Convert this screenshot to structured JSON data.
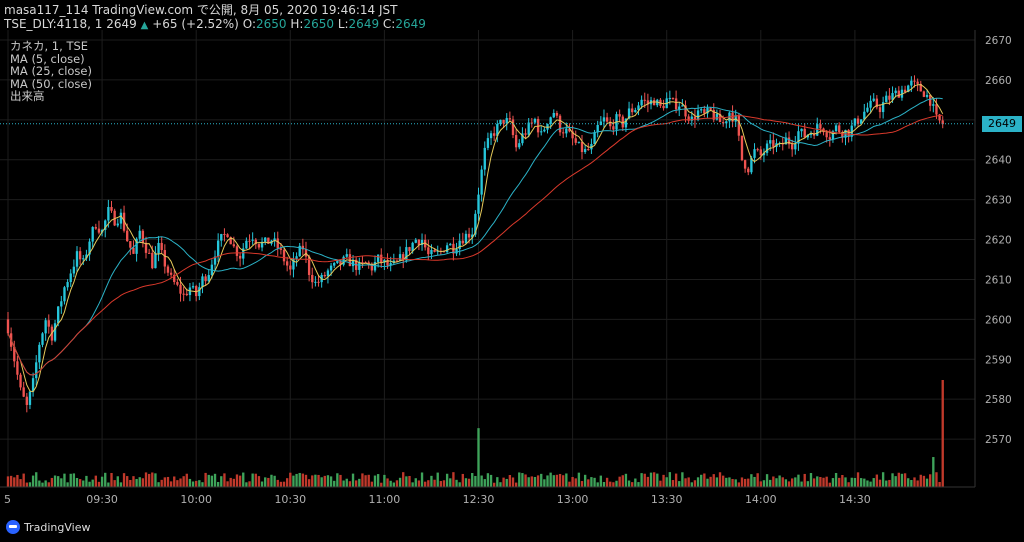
{
  "header": {
    "line1": "masa117_114 TradingView.com で公開, 8月 05, 2020 19:46:14 JST",
    "symbol": "TSE_DLY:4118, 1",
    "close_display": "2649",
    "change_arrow": "▲",
    "change": "+65 (+2.52%)",
    "o_label": "O:",
    "o_value": "2650",
    "h_label": "H:",
    "h_value": "2650",
    "l_label": "L:",
    "l_value": "2649",
    "c_label": "C:",
    "c_value": "2649"
  },
  "legend": {
    "symbol": "カネカ, 1, TSE",
    "ma5": "MA (5, close)",
    "ma25": "MA (25, close)",
    "ma50": "MA (50, close)",
    "volume": "出来高"
  },
  "last_price_label": "2649",
  "footer": {
    "brand": "TradingView"
  },
  "colors": {
    "up": "#26c6da",
    "down": "#ef5350",
    "ma5": "#e5c95a",
    "ma25": "#2bb2c7",
    "ma50": "#d9392b",
    "vol_up": "#3ea35a",
    "vol_down": "#c0392b",
    "grid": "#1d1d1d"
  },
  "chart_data": {
    "type": "candlestick",
    "title": "",
    "ylim": [
      2560,
      2670
    ],
    "y_ticks": [
      "2570",
      "2580",
      "2590",
      "2600",
      "2610",
      "2620",
      "2630",
      "2640",
      "2650",
      "2660",
      "2670"
    ],
    "x_ticks": [
      {
        "label": "5",
        "t": 0
      },
      {
        "label": "09:30",
        "t": 30
      },
      {
        "label": "10:00",
        "t": 60
      },
      {
        "label": "10:30",
        "t": 90
      },
      {
        "label": "11:00",
        "t": 120
      },
      {
        "label": "12:30",
        "t": 150
      },
      {
        "label": "13:00",
        "t": 180
      },
      {
        "label": "13:30",
        "t": 210
      },
      {
        "label": "14:00",
        "t": 240
      },
      {
        "label": "14:30",
        "t": 270
      }
    ],
    "time_range": [
      0,
      300
    ],
    "price_path": [
      [
        0,
        2598
      ],
      [
        2,
        2590
      ],
      [
        4,
        2582
      ],
      [
        6,
        2578
      ],
      [
        8,
        2584
      ],
      [
        10,
        2594
      ],
      [
        12,
        2600
      ],
      [
        14,
        2596
      ],
      [
        16,
        2602
      ],
      [
        18,
        2608
      ],
      [
        20,
        2612
      ],
      [
        22,
        2616
      ],
      [
        24,
        2614
      ],
      [
        26,
        2620
      ],
      [
        28,
        2624
      ],
      [
        30,
        2622
      ],
      [
        32,
        2627
      ],
      [
        34,
        2625
      ],
      [
        36,
        2626
      ],
      [
        38,
        2620
      ],
      [
        40,
        2616
      ],
      [
        42,
        2622
      ],
      [
        44,
        2618
      ],
      [
        46,
        2614
      ],
      [
        48,
        2618
      ],
      [
        50,
        2614
      ],
      [
        52,
        2610
      ],
      [
        54,
        2608
      ],
      [
        56,
        2606
      ],
      [
        58,
        2608
      ],
      [
        60,
        2606
      ],
      [
        62,
        2610
      ],
      [
        64,
        2612
      ],
      [
        66,
        2617
      ],
      [
        68,
        2620
      ],
      [
        70,
        2622
      ],
      [
        72,
        2618
      ],
      [
        74,
        2616
      ],
      [
        76,
        2620
      ],
      [
        78,
        2621
      ],
      [
        80,
        2619
      ],
      [
        82,
        2619
      ],
      [
        84,
        2620
      ],
      [
        86,
        2618
      ],
      [
        88,
        2615
      ],
      [
        90,
        2612
      ],
      [
        92,
        2616
      ],
      [
        94,
        2618
      ],
      [
        96,
        2612
      ],
      [
        98,
        2609
      ],
      [
        100,
        2610
      ],
      [
        102,
        2612
      ],
      [
        104,
        2613
      ],
      [
        106,
        2614
      ],
      [
        108,
        2615
      ],
      [
        110,
        2614
      ],
      [
        112,
        2613
      ],
      [
        114,
        2614
      ],
      [
        116,
        2613
      ],
      [
        118,
        2615
      ],
      [
        120,
        2614
      ],
      [
        122,
        2613
      ],
      [
        124,
        2614
      ],
      [
        126,
        2616
      ],
      [
        128,
        2618
      ],
      [
        130,
        2620
      ],
      [
        132,
        2620
      ],
      [
        134,
        2616
      ],
      [
        136,
        2616
      ],
      [
        138,
        2617
      ],
      [
        140,
        2619
      ],
      [
        142,
        2618
      ],
      [
        144,
        2620
      ],
      [
        146,
        2621
      ],
      [
        148,
        2622
      ],
      [
        150,
        2632
      ],
      [
        152,
        2642
      ],
      [
        154,
        2646
      ],
      [
        156,
        2648
      ],
      [
        158,
        2650
      ],
      [
        160,
        2649
      ],
      [
        162,
        2643
      ],
      [
        164,
        2646
      ],
      [
        166,
        2648
      ],
      [
        168,
        2650
      ],
      [
        170,
        2646
      ],
      [
        172,
        2650
      ],
      [
        174,
        2652
      ],
      [
        176,
        2648
      ],
      [
        178,
        2647
      ],
      [
        180,
        2645
      ],
      [
        182,
        2643
      ],
      [
        184,
        2642
      ],
      [
        186,
        2643
      ],
      [
        188,
        2648
      ],
      [
        190,
        2650
      ],
      [
        192,
        2648
      ],
      [
        194,
        2650
      ],
      [
        196,
        2649
      ],
      [
        198,
        2652
      ],
      [
        200,
        2653
      ],
      [
        202,
        2655
      ],
      [
        204,
        2654
      ],
      [
        206,
        2655
      ],
      [
        208,
        2653
      ],
      [
        210,
        2655
      ],
      [
        212,
        2654
      ],
      [
        214,
        2654
      ],
      [
        216,
        2652
      ],
      [
        218,
        2650
      ],
      [
        220,
        2652
      ],
      [
        222,
        2651
      ],
      [
        224,
        2652
      ],
      [
        226,
        2650
      ],
      [
        228,
        2649
      ],
      [
        230,
        2652
      ],
      [
        232,
        2650
      ],
      [
        234,
        2640
      ],
      [
        236,
        2638
      ],
      [
        238,
        2642
      ],
      [
        240,
        2641
      ],
      [
        242,
        2643
      ],
      [
        244,
        2644
      ],
      [
        246,
        2643
      ],
      [
        248,
        2645
      ],
      [
        250,
        2644
      ],
      [
        252,
        2647
      ],
      [
        254,
        2646
      ],
      [
        256,
        2647
      ],
      [
        258,
        2648
      ],
      [
        260,
        2648
      ],
      [
        262,
        2646
      ],
      [
        264,
        2648
      ],
      [
        266,
        2647
      ],
      [
        268,
        2647
      ],
      [
        270,
        2649
      ],
      [
        272,
        2651
      ],
      [
        274,
        2653
      ],
      [
        276,
        2654
      ],
      [
        278,
        2653
      ],
      [
        280,
        2655
      ],
      [
        282,
        2656
      ],
      [
        284,
        2657
      ],
      [
        286,
        2658
      ],
      [
        288,
        2659
      ],
      [
        290,
        2658
      ],
      [
        292,
        2657
      ],
      [
        294,
        2655
      ],
      [
        296,
        2650
      ],
      [
        298,
        2649
      ]
    ],
    "volume_max": 100,
    "volume_spikes": [
      [
        150,
        55
      ],
      [
        298,
        100
      ],
      [
        295,
        28
      ]
    ]
  }
}
